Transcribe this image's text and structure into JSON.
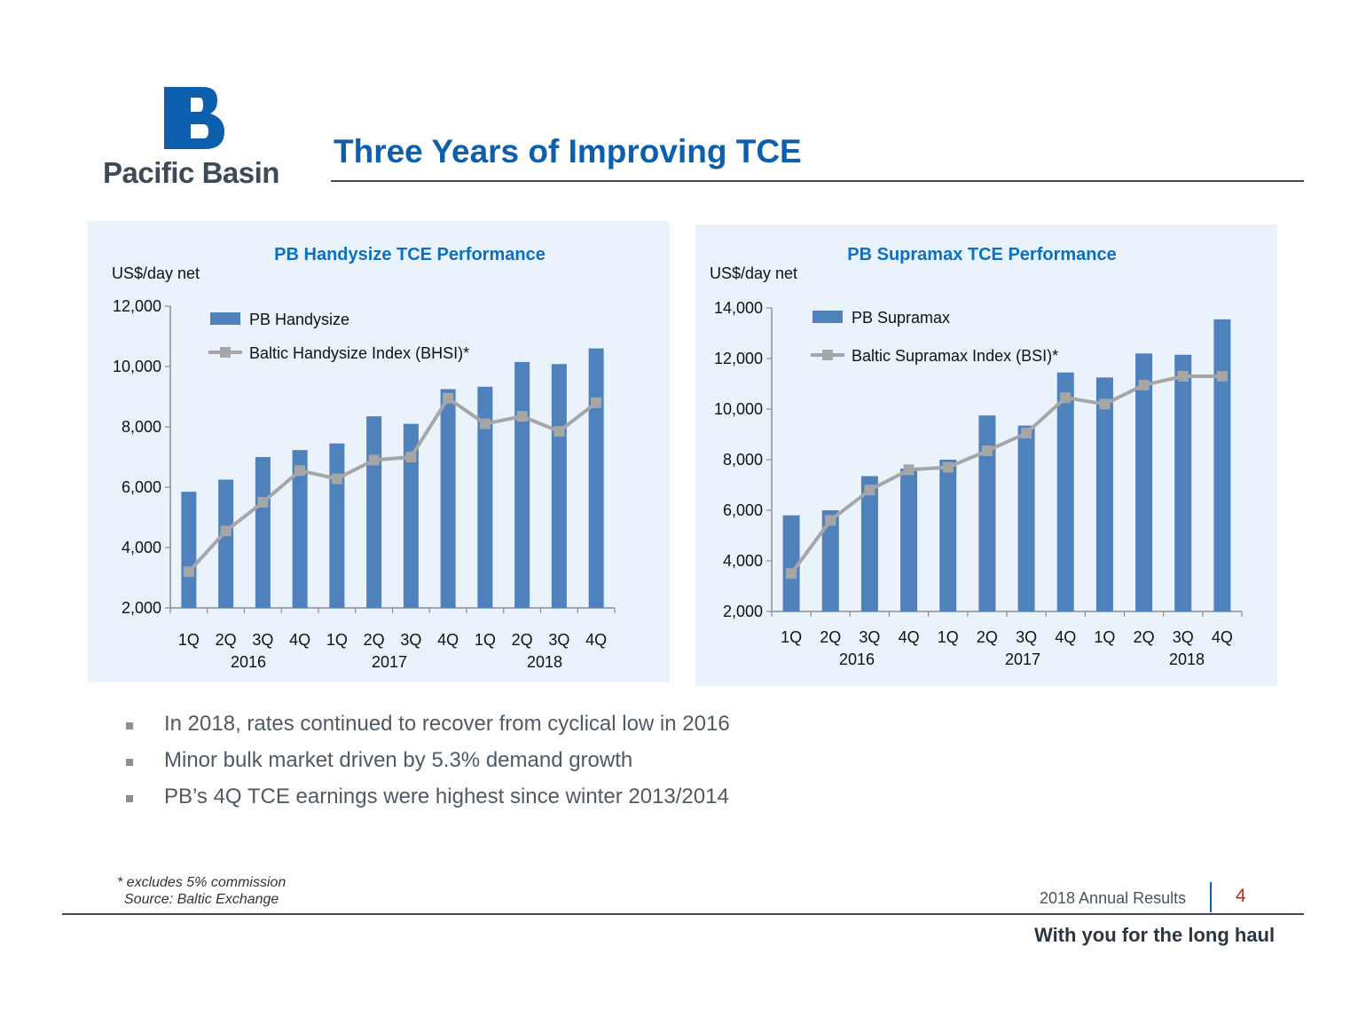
{
  "header": {
    "logo_text": "Pacific Basin",
    "title": "Three Years of Improving TCE"
  },
  "colors": {
    "brand_blue": "#0b5fad",
    "bar_blue": "#4f81bd",
    "index_gray": "#a6a6a6",
    "panel_bg": "#eaf3fc"
  },
  "chart_data": [
    {
      "type": "bar",
      "title": "PB Handysize TCE Performance",
      "ylabel": "US$/day net",
      "xlabel": "",
      "categories": [
        "1Q",
        "2Q",
        "3Q",
        "4Q",
        "1Q",
        "2Q",
        "3Q",
        "4Q",
        "1Q",
        "2Q",
        "3Q",
        "4Q"
      ],
      "year_labels": [
        "2016",
        "2017",
        "2018"
      ],
      "ylim": [
        2000,
        12000
      ],
      "yticks": [
        2000,
        4000,
        6000,
        8000,
        10000,
        12000
      ],
      "ytick_labels": [
        "2,000",
        "4,000",
        "6,000",
        "8,000",
        "10,000",
        "12,000"
      ],
      "legend_position": "top-left",
      "grid": false,
      "series": [
        {
          "name": "PB Handysize",
          "kind": "bar",
          "values": [
            5850,
            6250,
            7000,
            7230,
            7450,
            8350,
            8100,
            9250,
            9330,
            10150,
            10080,
            10600
          ]
        },
        {
          "name": "Baltic Handysize Index (BHSI)*",
          "kind": "line",
          "values": [
            3200,
            4550,
            5500,
            6550,
            6280,
            6900,
            7000,
            8950,
            8100,
            8350,
            7850,
            8800
          ]
        }
      ]
    },
    {
      "type": "bar",
      "title": "PB Supramax TCE Performance",
      "ylabel": "US$/day net",
      "xlabel": "",
      "categories": [
        "1Q",
        "2Q",
        "3Q",
        "4Q",
        "1Q",
        "2Q",
        "3Q",
        "4Q",
        "1Q",
        "2Q",
        "3Q",
        "4Q"
      ],
      "year_labels": [
        "2016",
        "2017",
        "2018"
      ],
      "ylim": [
        2000,
        14000
      ],
      "yticks": [
        2000,
        4000,
        6000,
        8000,
        10000,
        12000,
        14000
      ],
      "ytick_labels": [
        "2,000",
        "4,000",
        "6,000",
        "8,000",
        "10,000",
        "12,000",
        "14,000"
      ],
      "legend_position": "top-left",
      "grid": false,
      "series": [
        {
          "name": "PB Supramax",
          "kind": "bar",
          "values": [
            5800,
            6000,
            7350,
            7650,
            8000,
            9750,
            9350,
            11450,
            11250,
            12200,
            12150,
            13550
          ]
        },
        {
          "name": "Baltic Supramax Index (BSI)*",
          "kind": "line",
          "values": [
            3500,
            5600,
            6800,
            7600,
            7700,
            8350,
            9050,
            10450,
            10200,
            10950,
            11300,
            11300
          ]
        }
      ]
    }
  ],
  "bullets": [
    "In 2018, rates continued to recover from cyclical low in 2016",
    "Minor bulk market driven by 5.3% demand growth",
    "PB’s 4Q TCE earnings were highest since winter 2013/2014"
  ],
  "footer": {
    "footnote": "* excludes 5% commission",
    "source": "Source: Baltic Exchange",
    "report_name": "2018 Annual Results",
    "page_number": "4",
    "tagline": "With you for the long haul"
  }
}
